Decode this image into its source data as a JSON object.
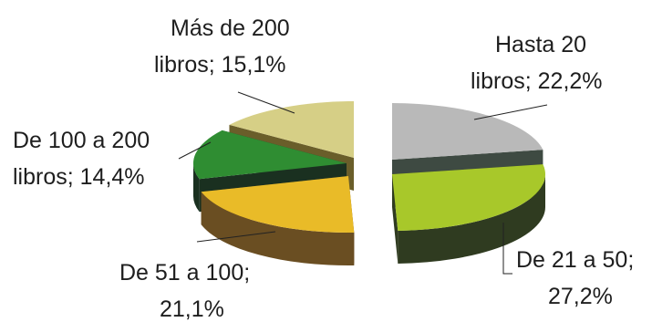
{
  "chart_data": {
    "type": "pie",
    "title": "",
    "style": "exploded 3D pie",
    "slices": [
      {
        "key": "hasta20",
        "label_line1": "Hasta 20",
        "label_line2": "libros; 22,2%",
        "value": 22.2,
        "color": "#b9b9b9",
        "side": "#3e4a42"
      },
      {
        "key": "de21a50",
        "label_line1": "De 21 a 50;",
        "label_line2": "27,2%",
        "value": 27.2,
        "color": "#a8c82a",
        "side": "#2f3b20"
      },
      {
        "key": "de51a100",
        "label_line1": "De 51 a 100;",
        "label_line2": "21,1%",
        "value": 21.1,
        "color": "#e9bb28",
        "side": "#6a4e22"
      },
      {
        "key": "de100a200",
        "label_line1": "De 100 a 200",
        "label_line2": "libros; 14,4%",
        "value": 14.4,
        "color": "#2f8d32",
        "side": "#1a3020"
      },
      {
        "key": "mas200",
        "label_line1": "Más de 200",
        "label_line2": "libros; 15,1%",
        "value": 15.1,
        "color": "#d6cf86",
        "side": "#6a5e2a"
      }
    ]
  }
}
